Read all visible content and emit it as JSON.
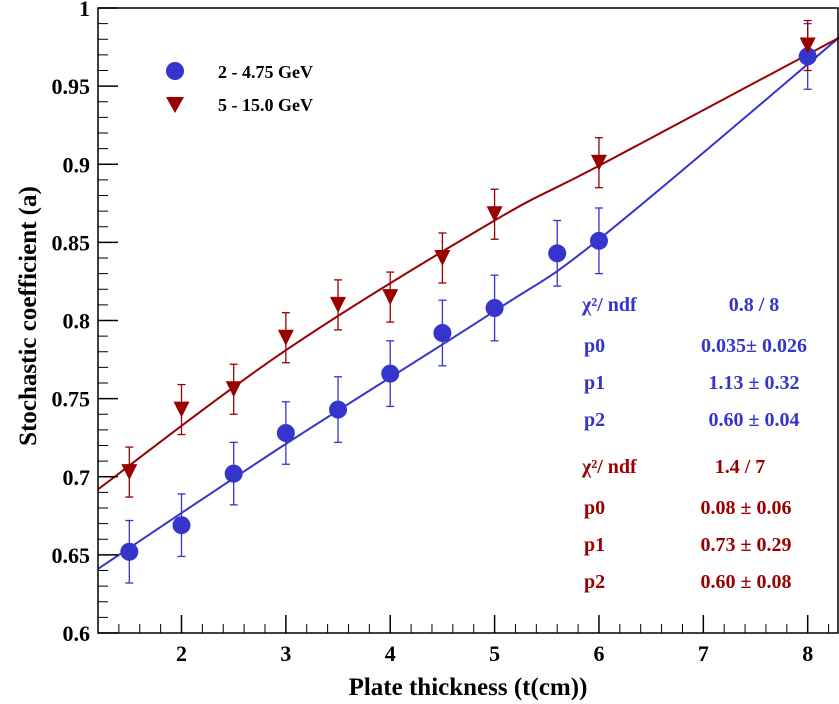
{
  "chart_data": {
    "type": "scatter",
    "xlabel": "Plate thickness (t(cm))",
    "ylabel": "Stochastic coefficient (a)",
    "xlim": [
      1.2,
      8.3
    ],
    "ylim": [
      0.6,
      1.0
    ],
    "x_ticks": [
      2,
      3,
      4,
      5,
      6,
      7,
      8
    ],
    "y_ticks": [
      0.6,
      0.65,
      0.7,
      0.75,
      0.8,
      0.85,
      0.9,
      0.95,
      1.0
    ],
    "x_tick_labels": [
      "2",
      "3",
      "4",
      "5",
      "6",
      "7",
      "8"
    ],
    "y_tick_labels": [
      "0.6",
      "0.65",
      "0.7",
      "0.75",
      "0.8",
      "0.85",
      "0.9",
      "0.95",
      "1"
    ],
    "grid": false,
    "legend_position": "top-left",
    "series": [
      {
        "name": "2 - 4.75 GeV",
        "marker": "circle",
        "color": "#3535cc",
        "x": [
          1.5,
          2.0,
          2.5,
          3.0,
          3.5,
          4.0,
          4.5,
          5.0,
          5.6,
          6.0,
          8.0
        ],
        "y": [
          0.652,
          0.669,
          0.702,
          0.728,
          0.743,
          0.766,
          0.792,
          0.808,
          0.843,
          0.851,
          0.969
        ],
        "yerr": [
          0.02,
          0.02,
          0.02,
          0.02,
          0.021,
          0.021,
          0.021,
          0.021,
          0.021,
          0.021,
          0.021
        ]
      },
      {
        "name": "5 - 15.0 GeV",
        "marker": "triangle-down",
        "color": "#990000",
        "x": [
          1.5,
          2.0,
          2.5,
          3.0,
          3.5,
          4.0,
          4.5,
          5.0,
          6.0,
          8.0
        ],
        "y": [
          0.703,
          0.743,
          0.756,
          0.789,
          0.81,
          0.815,
          0.84,
          0.868,
          0.901,
          0.976
        ],
        "yerr": [
          0.016,
          0.016,
          0.016,
          0.016,
          0.016,
          0.016,
          0.016,
          0.016,
          0.016,
          0.016
        ]
      }
    ],
    "fits": [
      {
        "series": "2 - 4.75 GeV",
        "color": "#3535cc",
        "chi2_label": "χ²/ ndf",
        "chi2_value": "0.8 / 8",
        "params": [
          {
            "name": "p0",
            "value": "0.035± 0.026"
          },
          {
            "name": "p1",
            "value": "1.13 ± 0.32"
          },
          {
            "name": "p2",
            "value": "0.60 ± 0.04"
          }
        ],
        "p0": 0.035,
        "p1": 1.13,
        "p2": 0.6
      },
      {
        "series": "5 - 15.0 GeV",
        "color": "#990000",
        "chi2_label": "χ²/ ndf",
        "chi2_value": "1.4 / 7",
        "params": [
          {
            "name": "p0",
            "value": "0.08 ±  0.06"
          },
          {
            "name": "p1",
            "value": "0.73 ±  0.29"
          },
          {
            "name": "p2",
            "value": "0.60 ± 0.08"
          }
        ],
        "p0": 0.08,
        "p1": 0.73,
        "p2": 0.6
      }
    ]
  }
}
